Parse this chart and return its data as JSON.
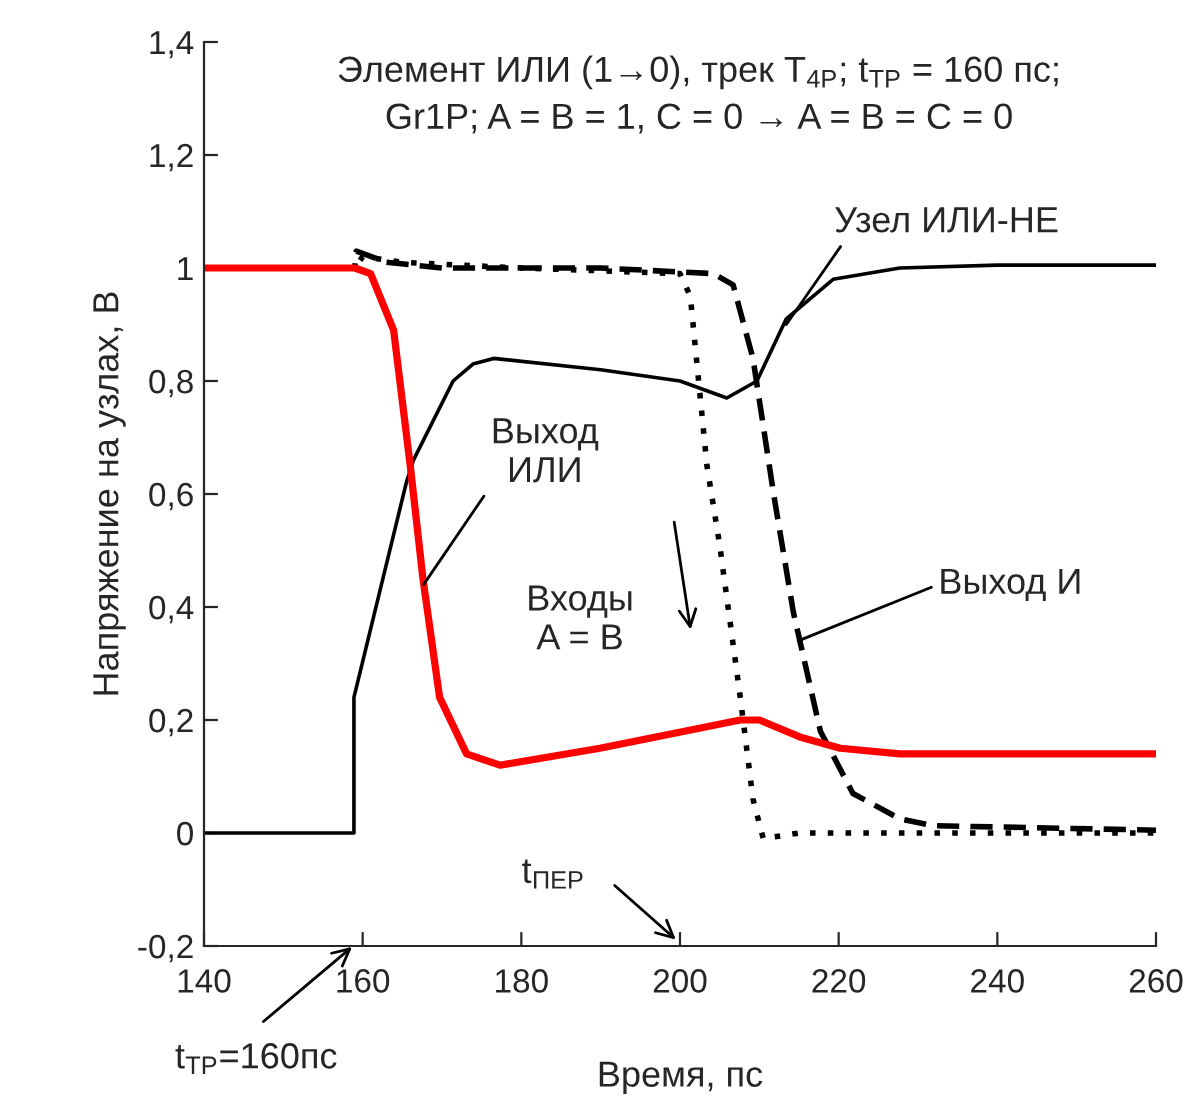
{
  "chart_data": {
    "type": "line",
    "title": "Элемент ИЛИ (1→0), трек T$_{4P}$; t$_{ТР}$ = 160 пс;\nGr1P; A = B = 1, C = 0 → A = B = C = 0",
    "xlabel": "Время, пс",
    "ylabel": "Напряжение на узлах, В",
    "xlim": [
      140,
      260
    ],
    "xticks": [
      140,
      160,
      180,
      200,
      220,
      240,
      260
    ],
    "ylim": [
      -0.2,
      1.4
    ],
    "yticks": [
      {
        "value": -0.2,
        "label": "-0,2"
      },
      0,
      {
        "value": 0.2,
        "label": "0,2"
      },
      {
        "value": 0.4,
        "label": "0,4"
      },
      {
        "value": 0.6,
        "label": "0,6"
      },
      {
        "value": 0.8,
        "label": "0,8"
      },
      1,
      {
        "value": 1.2,
        "label": "1,2"
      },
      {
        "value": 1.4,
        "label": "1,4"
      }
    ],
    "grid": false,
    "legend": false,
    "marker": "none",
    "series": [
      {
        "color": "#000000",
        "line_style": "solid",
        "x": [
          140,
          158.9,
          158.9,
          165.5,
          166.4,
          171.4,
          173.9,
          176.5,
          190,
          200,
          205.9,
          209.7,
          213.4,
          219.3,
          227.7,
          240,
          260
        ],
        "values": [
          0,
          0,
          0.24,
          0.62,
          0.66,
          0.8,
          0.83,
          0.84,
          0.82,
          0.8,
          0.77,
          0.8,
          0.91,
          0.98,
          1.0,
          1.005,
          1.005
        ]
      },
      {
        "color": "#000000",
        "line_style": "dotted",
        "x": [
          140,
          159,
          160,
          165,
          180,
          200,
          201.3,
          203.4,
          205,
          207.6,
          209.2,
          210.5,
          215,
          260
        ],
        "values": [
          1,
          1,
          1.02,
          1.01,
          1.0,
          0.99,
          0.95,
          0.65,
          0.51,
          0.24,
          0.06,
          -0.01,
          0,
          0
        ]
      },
      {
        "color": "#000000",
        "line_style": "dashed",
        "x": [
          140,
          159,
          159.2,
          163,
          170,
          190,
          204.2,
          206.7,
          209.2,
          211.8,
          214.3,
          217.7,
          221.8,
          227.7,
          231.9,
          260
        ],
        "values": [
          1,
          1,
          1.03,
          1.01,
          1.0,
          1.0,
          0.99,
          0.97,
          0.84,
          0.6,
          0.39,
          0.18,
          0.07,
          0.025,
          0.013,
          0.005
        ]
      },
      {
        "color": "#ff0000",
        "line_style": "solid",
        "x": [
          140,
          159,
          161,
          163.9,
          166,
          167.6,
          169.7,
          173.1,
          177.3,
          189.9,
          207.6,
          210,
          215.1,
          220.2,
          227.7,
          260
        ],
        "values": [
          1,
          1,
          0.99,
          0.89,
          0.65,
          0.45,
          0.24,
          0.14,
          0.12,
          0.15,
          0.2,
          0.2,
          0.17,
          0.15,
          0.14,
          0.14
        ]
      }
    ],
    "annotations": [
      {
        "text": "Узел ИЛИ-НЕ",
        "x": 213.4,
        "y": 0.9
      },
      {
        "text": "Выход\nИЛИ",
        "x": 167.7,
        "y": 0.44
      },
      "Входы\nA = B",
      {
        "text": "Выход И",
        "x": 214.9,
        "y": 0.34
      },
      "t$_{ПЕР}$",
      "t$_{ТР}$=160пс"
    ]
  }
}
